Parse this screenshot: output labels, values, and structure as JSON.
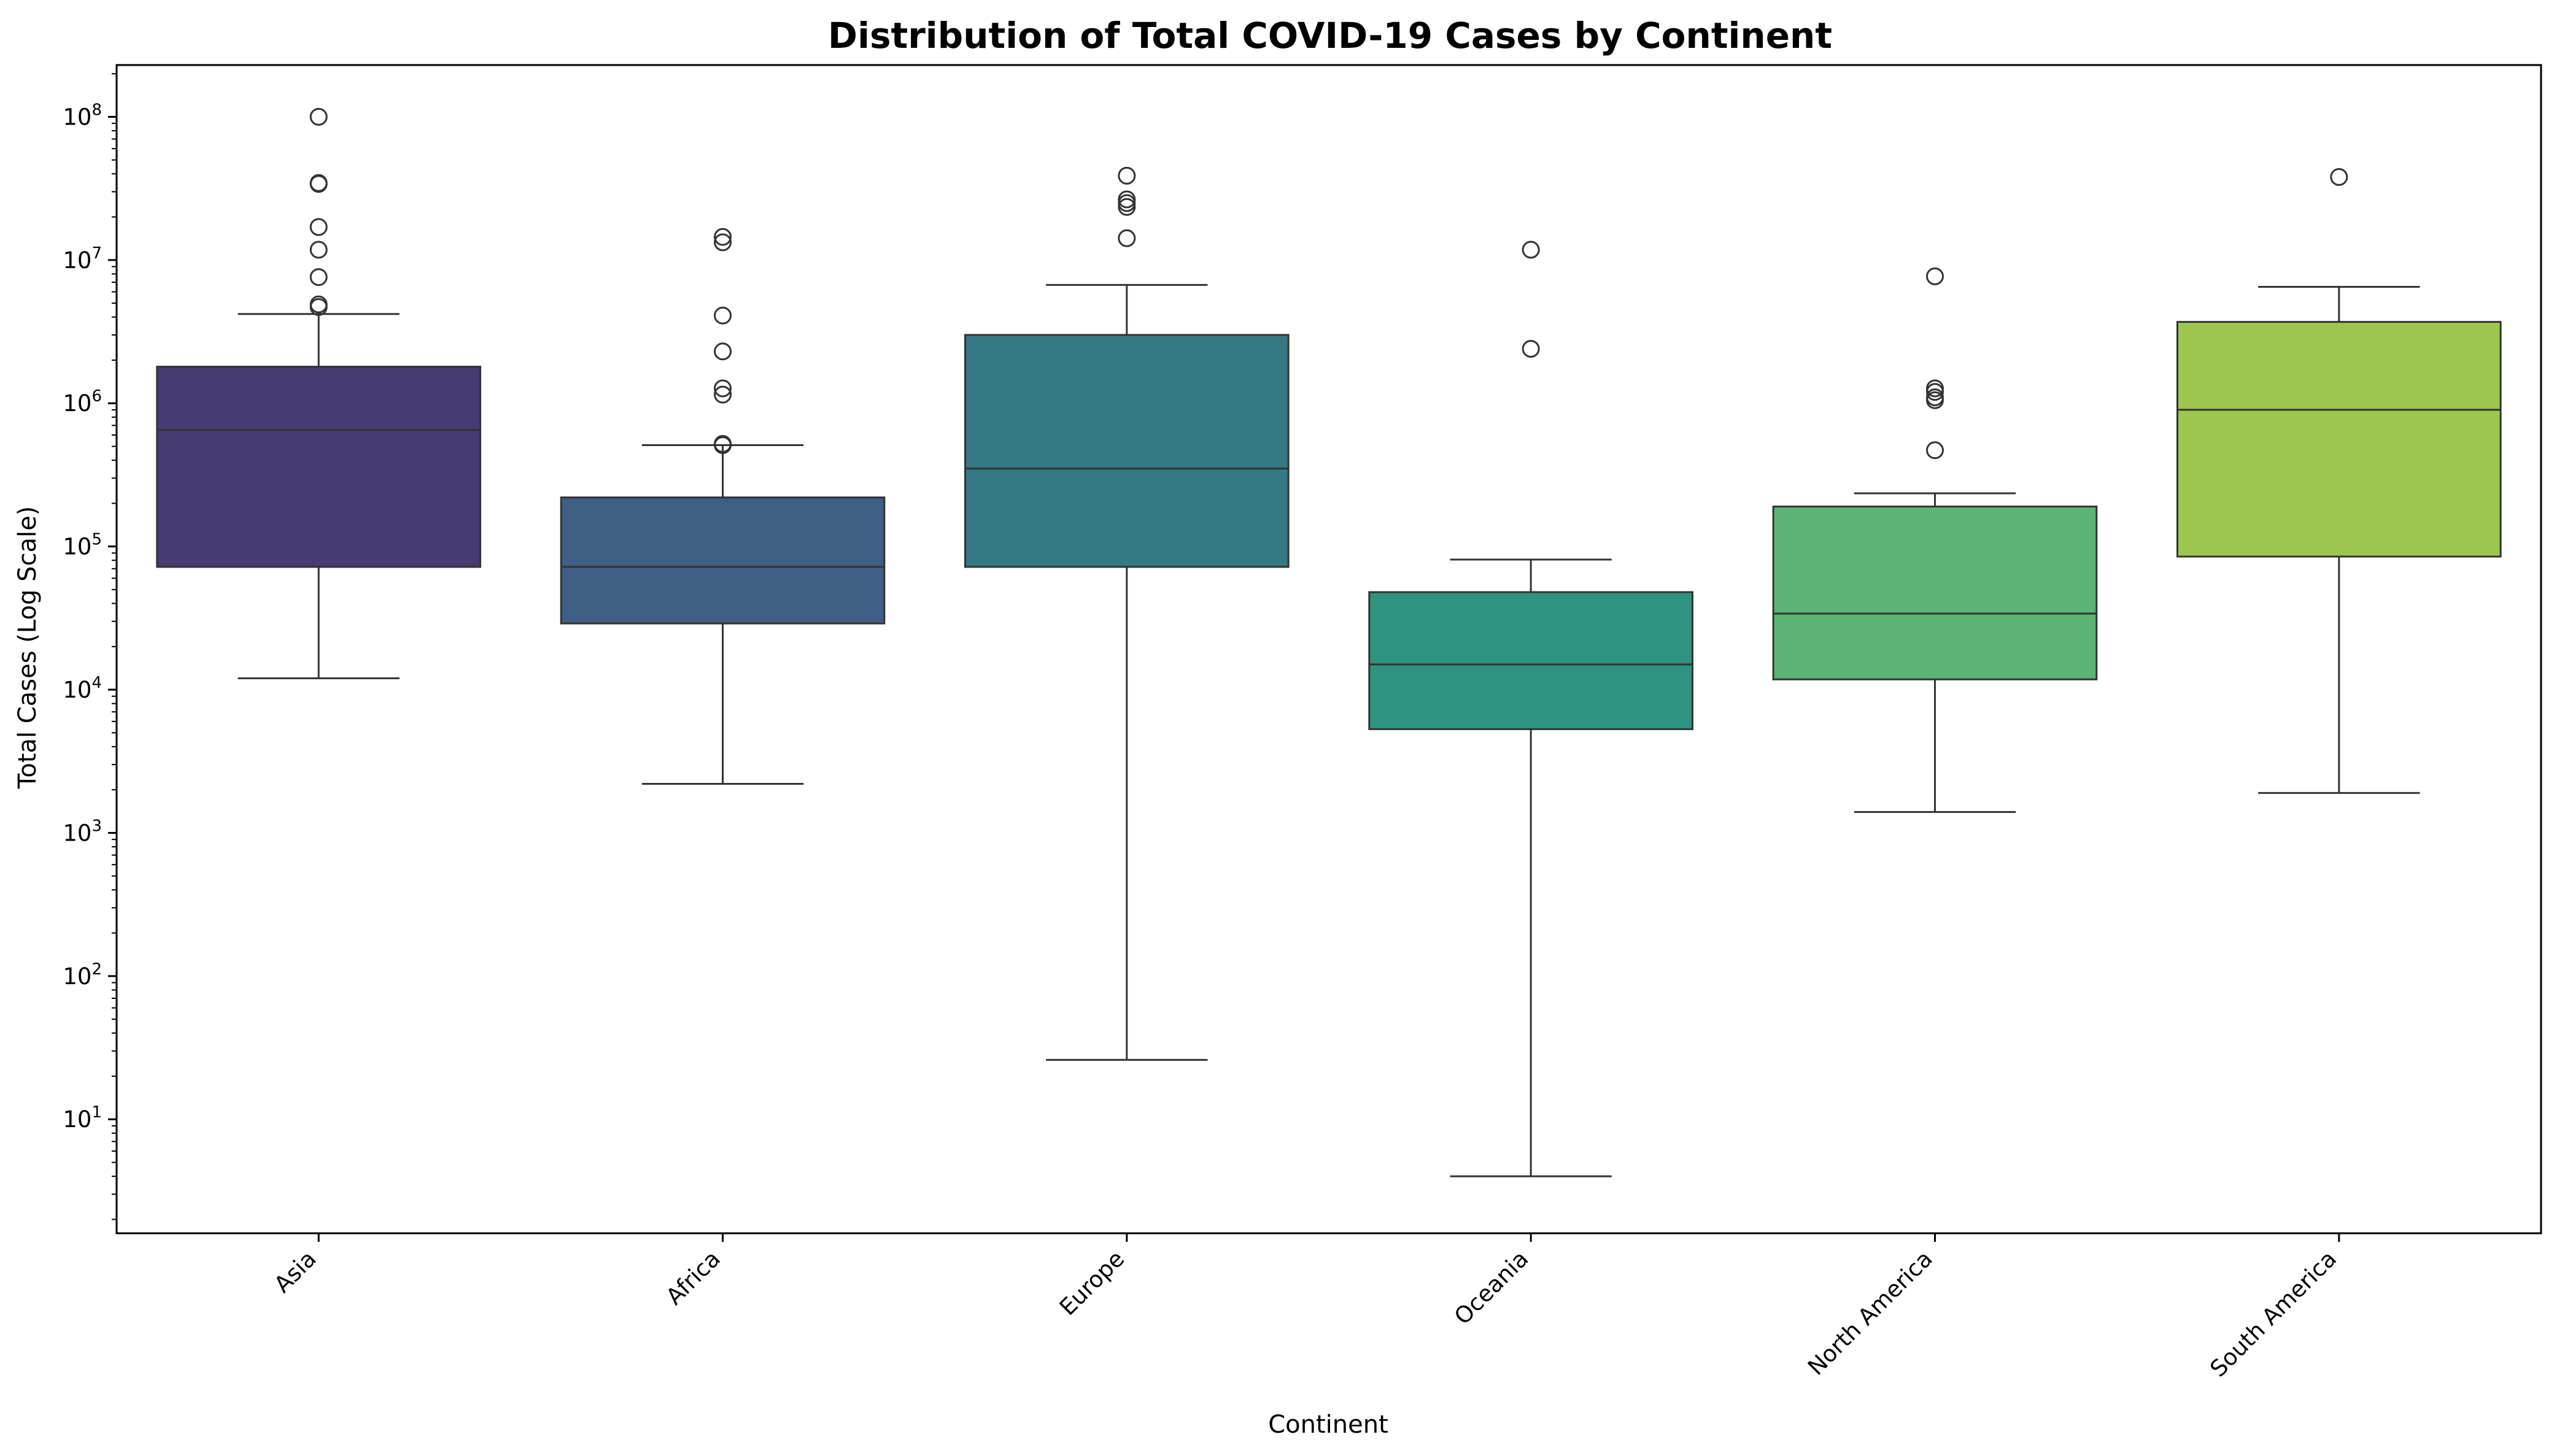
{
  "chart_data": {
    "type": "box",
    "title": "Distribution of Total COVID-19 Cases by Continent",
    "xlabel": "Continent",
    "ylabel": "Total Cases (Log Scale)",
    "yscale": "log",
    "ylim": [
      1.6,
      230000000
    ],
    "yticks": [
      {
        "value": 10,
        "base": "10",
        "exp": "1"
      },
      {
        "value": 100,
        "base": "10",
        "exp": "2"
      },
      {
        "value": 1000,
        "base": "10",
        "exp": "3"
      },
      {
        "value": 10000,
        "base": "10",
        "exp": "4"
      },
      {
        "value": 100000,
        "base": "10",
        "exp": "5"
      },
      {
        "value": 1000000,
        "base": "10",
        "exp": "6"
      },
      {
        "value": 10000000,
        "base": "10",
        "exp": "7"
      },
      {
        "value": 100000000,
        "base": "10",
        "exp": "8"
      }
    ],
    "grid": false,
    "legend": "none",
    "categories": [
      "Asia",
      "Africa",
      "Europe",
      "Oceania",
      "North America",
      "South America"
    ],
    "boxes": [
      {
        "category": "Asia",
        "color": "#483a73",
        "whisker_low": 12000,
        "q1": 72000,
        "median": 650000,
        "q3": 1800000,
        "whisker_high": 4200000,
        "outliers": [
          100000000,
          34500000,
          34000000,
          17000000,
          11800000,
          7600000,
          4900000,
          4700000
        ]
      },
      {
        "category": "Africa",
        "color": "#3f5e84",
        "whisker_low": 2200,
        "q1": 29000,
        "median": 72000,
        "q3": 220000,
        "whisker_high": 510000,
        "outliers": [
          14500000,
          13300000,
          4100000,
          2300000,
          1270000,
          1150000,
          520000,
          510000
        ]
      },
      {
        "category": "Europe",
        "color": "#347983",
        "whisker_low": 26,
        "q1": 72000,
        "median": 350000,
        "q3": 3000000,
        "whisker_high": 6700000,
        "outliers": [
          38800000,
          26500000,
          25000000,
          23500000,
          14200000
        ]
      },
      {
        "category": "Oceania",
        "color": "#2f937f",
        "whisker_low": 4,
        "q1": 5300,
        "median": 15000,
        "q3": 48000,
        "whisker_high": 81000,
        "outliers": [
          11800000,
          2400000
        ]
      },
      {
        "category": "North America",
        "color": "#5ab473",
        "whisker_low": 1400,
        "q1": 11800,
        "median": 34000,
        "q3": 190000,
        "whisker_high": 235000,
        "outliers": [
          7700000,
          1270000,
          1200000,
          1100000,
          1050000,
          470000
        ]
      },
      {
        "category": "South America",
        "color": "#9bc74e",
        "whisker_low": 1900,
        "q1": 85000,
        "median": 900000,
        "q3": 3700000,
        "whisker_high": 6500000,
        "outliers": [
          38000000
        ]
      }
    ]
  }
}
